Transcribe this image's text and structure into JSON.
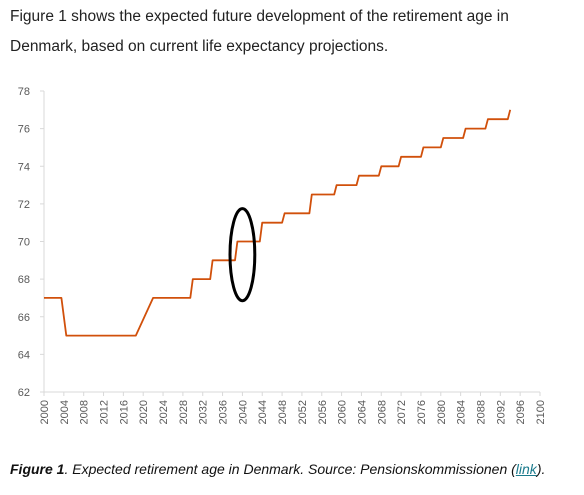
{
  "intro_text": "Figure 1 shows the expected future development of the retirement age in Denmark, based on current life expectancy projections.",
  "caption": {
    "label": "Figure 1",
    "text_before_link": ". Expected retirement age in Denmark. Source: Pensionskommissionen (",
    "link_text": "link",
    "text_after_link": ")."
  },
  "colors": {
    "line": "#d1500b",
    "highlight_ellipse": "#000000",
    "axis": "#d9d9d9",
    "tick_text": "#595959"
  },
  "chart_data": {
    "type": "line",
    "title": "",
    "xlabel": "",
    "ylabel": "",
    "xlim": [
      2000,
      2100
    ],
    "ylim": [
      62,
      78
    ],
    "y_ticks": [
      62,
      64,
      66,
      68,
      70,
      72,
      74,
      76,
      78
    ],
    "x_ticks": [
      2000,
      2004,
      2008,
      2012,
      2016,
      2020,
      2024,
      2028,
      2032,
      2036,
      2040,
      2044,
      2048,
      2052,
      2056,
      2060,
      2064,
      2068,
      2072,
      2076,
      2080,
      2084,
      2088,
      2092,
      2096,
      2100
    ],
    "grid": false,
    "legend": "none",
    "series": [
      {
        "name": "",
        "points": [
          [
            2000,
            67
          ],
          [
            2003.5,
            67
          ],
          [
            2004.5,
            65
          ],
          [
            2018.5,
            65
          ],
          [
            2022,
            67
          ],
          [
            2029.5,
            67
          ],
          [
            2030,
            68
          ],
          [
            2033.5,
            68
          ],
          [
            2034,
            69
          ],
          [
            2038.5,
            69
          ],
          [
            2039,
            70
          ],
          [
            2043.5,
            70
          ],
          [
            2044,
            71
          ],
          [
            2048,
            71
          ],
          [
            2048.5,
            71.5
          ],
          [
            2053.5,
            71.5
          ],
          [
            2054,
            72.5
          ],
          [
            2058.5,
            72.5
          ],
          [
            2059,
            73
          ],
          [
            2063,
            73
          ],
          [
            2063.5,
            73.5
          ],
          [
            2067.5,
            73.5
          ],
          [
            2068,
            74
          ],
          [
            2071.5,
            74
          ],
          [
            2072,
            74.5
          ],
          [
            2076,
            74.5
          ],
          [
            2076.5,
            75
          ],
          [
            2080,
            75
          ],
          [
            2080.5,
            75.5
          ],
          [
            2084.5,
            75.5
          ],
          [
            2085,
            76
          ],
          [
            2089,
            76
          ],
          [
            2089.5,
            76.5
          ],
          [
            2093.5,
            76.5
          ],
          [
            2094,
            77
          ]
        ]
      }
    ],
    "annotations": [
      {
        "type": "ellipse",
        "center": [
          2040,
          69.3
        ],
        "radius_x_years": 2.5,
        "radius_y": 2.45
      }
    ]
  }
}
